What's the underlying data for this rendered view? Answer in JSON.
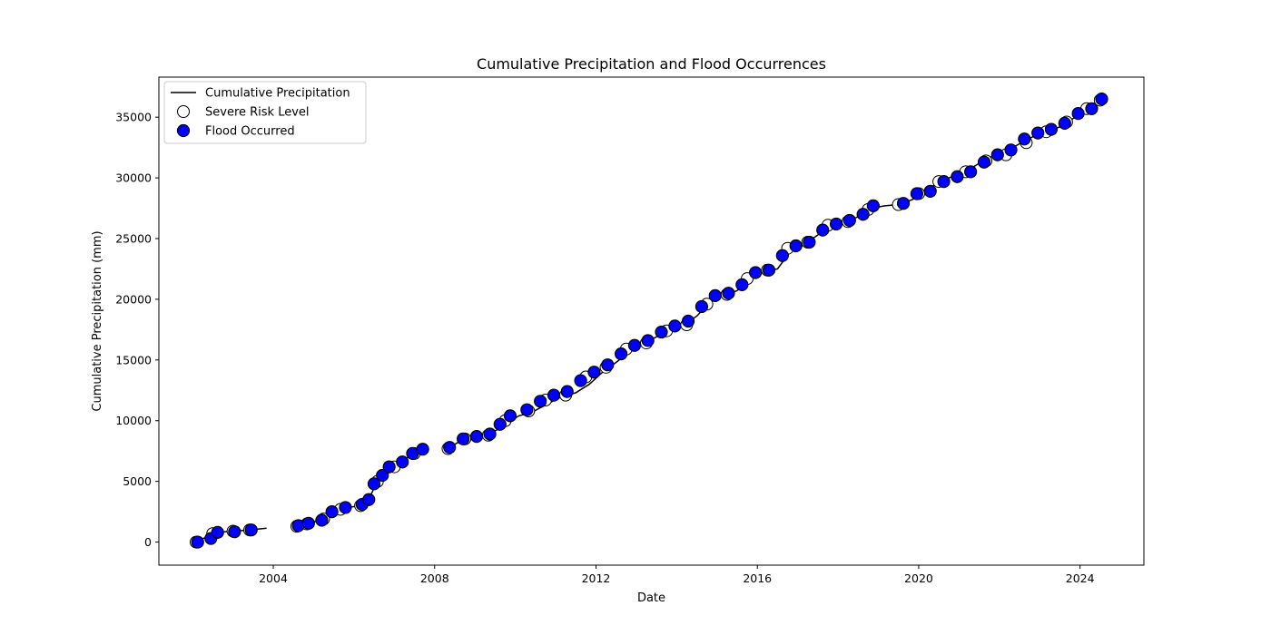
{
  "chart_data": {
    "type": "line",
    "title": "Cumulative Precipitation and Flood Occurrences",
    "xlabel": "Date",
    "ylabel": "Cumulative Precipitation (mm)",
    "xlim": [
      "2001-03-01",
      "2025-08-01"
    ],
    "ylim": [
      -1900,
      38300
    ],
    "x_ticks": [
      "2004",
      "2008",
      "2012",
      "2016",
      "2020",
      "2024"
    ],
    "y_ticks": [
      "0",
      "5000",
      "10000",
      "15000",
      "20000",
      "25000",
      "30000",
      "35000"
    ],
    "grid": false,
    "legend": {
      "position": "upper-left",
      "entries": [
        "Cumulative Precipitation",
        "Severe Risk Level",
        "Flood Occurred"
      ]
    },
    "colors": {
      "line": "#000000",
      "severe_marker_face": "#ffffff",
      "flood_marker_face": "#0000ff",
      "marker_edge": "#000000",
      "dense_overlap": "#1a1a1a"
    },
    "series": [
      {
        "name": "Cumulative Precipitation",
        "kind": "line",
        "x": [
          "2002-02-01",
          "2002-05-01",
          "2002-08-01",
          "2003-01-01",
          "2003-06-01",
          "2003-11-01",
          "2004-08-01",
          "2004-11-01",
          "2005-03-01",
          "2005-06-01",
          "2005-10-01",
          "2006-03-01",
          "2006-05-01",
          "2006-08-01",
          "2006-11-01",
          "2007-03-01",
          "2007-06-01",
          "2007-10-01",
          "2008-05-01",
          "2008-09-01",
          "2009-01-01",
          "2009-05-01",
          "2009-09-01",
          "2010-02-01",
          "2010-06-01",
          "2010-10-01",
          "2011-03-01",
          "2011-07-01",
          "2011-11-01",
          "2012-03-01",
          "2012-07-01",
          "2012-11-01",
          "2013-03-01",
          "2013-07-01",
          "2013-11-01",
          "2014-03-01",
          "2014-07-01",
          "2014-11-01",
          "2015-03-01",
          "2015-07-01",
          "2015-11-01",
          "2016-03-01",
          "2016-07-01",
          "2016-11-01",
          "2017-03-01",
          "2017-07-01",
          "2017-11-01",
          "2018-03-01",
          "2018-07-01",
          "2018-11-01",
          "2019-03-01",
          "2019-07-01",
          "2019-11-01",
          "2020-03-01",
          "2020-07-01",
          "2020-11-01",
          "2021-03-01",
          "2021-07-01",
          "2021-11-01",
          "2022-03-01",
          "2022-07-01",
          "2022-11-01",
          "2023-03-01",
          "2023-07-01",
          "2023-11-01",
          "2024-03-01",
          "2024-07-01"
        ],
        "y": [
          0,
          400,
          800,
          900,
          1000,
          1150,
          1300,
          1500,
          1800,
          2400,
          2800,
          3000,
          3300,
          5000,
          5900,
          6500,
          7200,
          7600,
          7700,
          8400,
          8700,
          8800,
          9500,
          10400,
          10700,
          11300,
          12000,
          12300,
          13000,
          14000,
          14800,
          15700,
          16300,
          16900,
          17600,
          17900,
          18600,
          19800,
          20300,
          20700,
          21600,
          22300,
          22500,
          24000,
          24500,
          25300,
          26000,
          26300,
          26800,
          27500,
          27700,
          27800,
          28200,
          28800,
          29700,
          30100,
          30500,
          31200,
          31800,
          32200,
          32800,
          33400,
          33800,
          34200,
          34900,
          35600,
          36400
        ]
      },
      {
        "name": "Severe Risk Level",
        "kind": "scatter",
        "x": [
          "2002-02-01",
          "2002-07-01",
          "2003-01-01",
          "2003-06-01",
          "2004-08-01",
          "2004-11-01",
          "2005-04-01",
          "2005-09-01",
          "2006-03-01",
          "2006-08-01",
          "2007-01-01",
          "2007-07-01",
          "2008-05-01",
          "2008-10-01",
          "2009-05-01",
          "2009-10-01",
          "2010-05-01",
          "2010-10-01",
          "2011-04-01",
          "2011-10-01",
          "2012-04-01",
          "2012-10-01",
          "2013-04-01",
          "2013-10-01",
          "2014-04-01",
          "2014-10-01",
          "2015-04-01",
          "2015-10-01",
          "2016-04-01",
          "2016-10-01",
          "2017-04-01",
          "2017-10-01",
          "2018-04-01",
          "2018-10-01",
          "2019-07-01",
          "2020-01-01",
          "2020-07-01",
          "2021-03-01",
          "2021-09-01",
          "2022-03-01",
          "2022-09-01",
          "2023-03-01",
          "2023-09-01",
          "2024-03-01",
          "2024-07-01"
        ],
        "y": [
          0,
          700,
          900,
          1000,
          1300,
          1500,
          1900,
          2700,
          3000,
          5000,
          6200,
          7300,
          7700,
          8500,
          8800,
          10000,
          10800,
          11700,
          12100,
          13600,
          14400,
          15900,
          16400,
          17400,
          17900,
          19600,
          20400,
          21700,
          22400,
          24200,
          24700,
          26100,
          26400,
          27400,
          27800,
          28700,
          29700,
          30500,
          31400,
          31900,
          32900,
          33800,
          34600,
          35700,
          36400
        ]
      },
      {
        "name": "Flood Occurred",
        "kind": "scatter",
        "x": [
          "2002-02-15",
          "2002-06-15",
          "2002-08-15",
          "2003-01-15",
          "2003-06-15",
          "2004-08-15",
          "2004-11-15",
          "2005-03-15",
          "2005-06-15",
          "2005-10-15",
          "2006-03-15",
          "2006-05-15",
          "2006-07-01",
          "2006-09-15",
          "2006-11-15",
          "2007-03-15",
          "2007-06-15",
          "2007-09-15",
          "2008-05-15",
          "2008-09-15",
          "2009-01-15",
          "2009-05-15",
          "2009-08-15",
          "2009-11-15",
          "2010-04-15",
          "2010-08-15",
          "2010-12-15",
          "2011-04-15",
          "2011-08-15",
          "2011-12-15",
          "2012-04-15",
          "2012-08-15",
          "2012-12-15",
          "2013-04-15",
          "2013-08-15",
          "2013-12-15",
          "2014-04-15",
          "2014-08-15",
          "2014-12-15",
          "2015-04-15",
          "2015-08-15",
          "2015-12-15",
          "2016-04-15",
          "2016-08-15",
          "2016-12-15",
          "2017-04-15",
          "2017-08-15",
          "2017-12-15",
          "2018-04-15",
          "2018-08-15",
          "2018-11-15",
          "2019-08-15",
          "2019-12-15",
          "2020-04-15",
          "2020-08-15",
          "2020-12-15",
          "2021-04-15",
          "2021-08-15",
          "2021-12-15",
          "2022-04-15",
          "2022-08-15",
          "2022-12-15",
          "2023-04-15",
          "2023-08-15",
          "2023-12-15",
          "2024-04-15",
          "2024-07-15"
        ],
        "y": [
          0,
          300,
          800,
          850,
          1000,
          1350,
          1550,
          1800,
          2500,
          2850,
          3100,
          3500,
          4800,
          5500,
          6200,
          6600,
          7300,
          7650,
          7800,
          8500,
          8700,
          8900,
          9700,
          10400,
          10900,
          11600,
          12100,
          12400,
          13300,
          14000,
          14600,
          15500,
          16200,
          16600,
          17300,
          17800,
          18200,
          19400,
          20300,
          20500,
          21200,
          22200,
          22400,
          23600,
          24400,
          24700,
          25700,
          26200,
          26500,
          27000,
          27700,
          27900,
          28700,
          28900,
          29700,
          30100,
          30500,
          31300,
          31900,
          32300,
          33200,
          33700,
          34000,
          34500,
          35300,
          35700,
          36500
        ]
      }
    ]
  }
}
